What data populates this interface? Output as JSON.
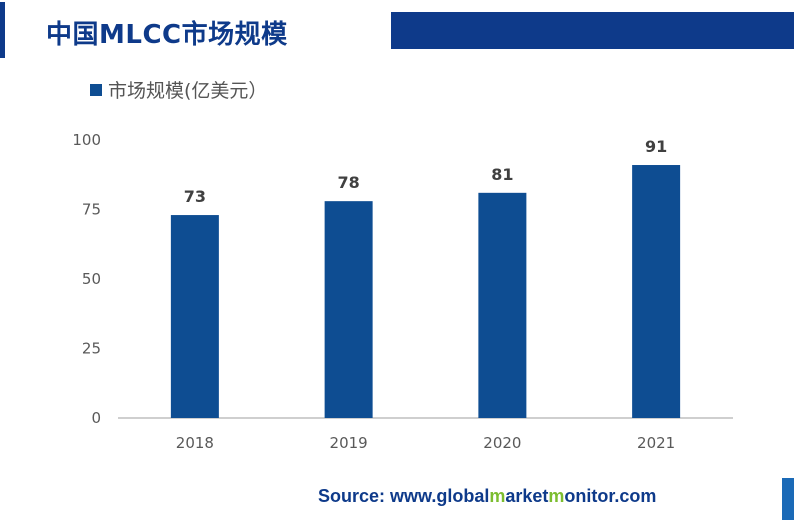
{
  "header": {
    "title": "中国MLCC市场规模"
  },
  "footer": {
    "source_parts": [
      {
        "text": "Source: www.",
        "highlight": false
      },
      {
        "text": "global",
        "highlight": false
      },
      {
        "text": "m",
        "highlight": true
      },
      {
        "text": "arket",
        "highlight": false
      },
      {
        "text": "m",
        "highlight": true
      },
      {
        "text": "onitor.com",
        "highlight": false
      }
    ]
  },
  "colors": {
    "brand": "#0e3a8a",
    "bar": "#0e4d92",
    "accent_green": "#7cbd2f"
  },
  "chart_data": {
    "type": "bar",
    "categories": [
      "2018",
      "2019",
      "2020",
      "2021"
    ],
    "series": [
      {
        "name": "市场规模(亿美元）",
        "values": [
          73,
          78,
          81,
          91
        ]
      }
    ],
    "data_labels": [
      "73",
      "78",
      "81",
      "91"
    ],
    "y_ticks": [
      "0",
      "25",
      "50",
      "75",
      "100"
    ],
    "ylim": [
      0,
      100
    ],
    "grid": false,
    "legend": "top-left"
  }
}
